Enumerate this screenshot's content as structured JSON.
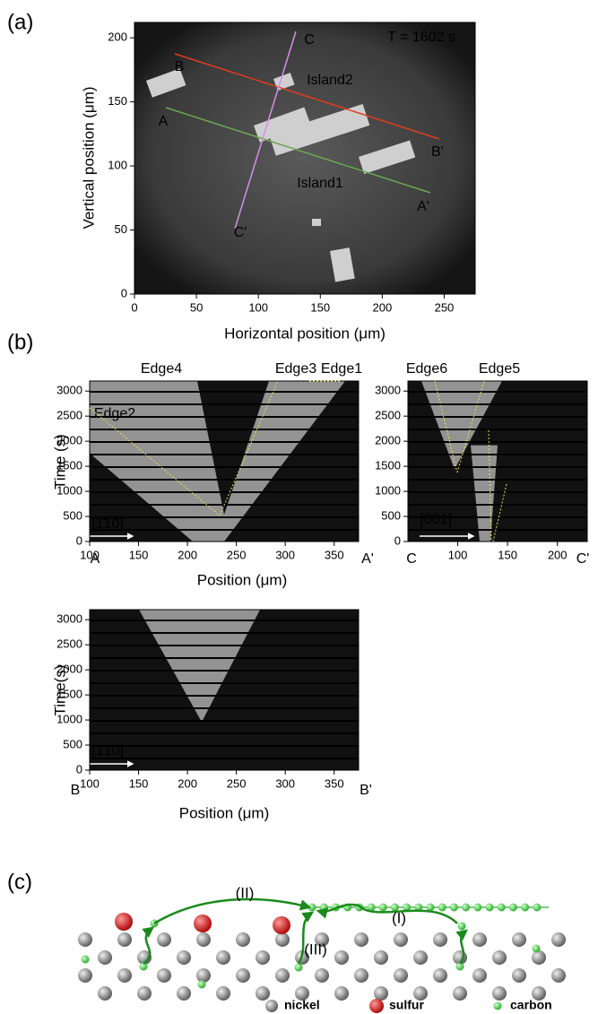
{
  "panel_labels": [
    "(a)",
    "(b)",
    "(c)"
  ],
  "chart_data": [
    {
      "type": "image",
      "xlabel": "Horizontal position (μm)",
      "ylabel": "Vertical position (μm)",
      "xlim": [
        0,
        275
      ],
      "ylim": [
        0,
        212
      ],
      "xticks": [
        0,
        50,
        100,
        150,
        200,
        250
      ],
      "yticks": [
        0,
        50,
        100,
        150,
        200
      ],
      "annotations": [
        {
          "text": "T = 1602 s",
          "color": "#ffffff"
        },
        {
          "text": "Island2",
          "color": "#ffffff"
        },
        {
          "text": "Island1",
          "color": "#ffffff"
        },
        {
          "text": "A",
          "color": "#6aa84f"
        },
        {
          "text": "A'",
          "color": "#6aa84f"
        },
        {
          "text": "B",
          "color": "#e03c1e"
        },
        {
          "text": "B'",
          "color": "#e03c1e"
        },
        {
          "text": "C",
          "color": "#d58ee8"
        },
        {
          "text": "C'",
          "color": "#d58ee8"
        }
      ]
    },
    {
      "type": "kymograph",
      "xlabel": "Position (μm)",
      "ylabel": "Time (s)",
      "xlim": [
        100,
        375
      ],
      "ylim": [
        0,
        3200
      ],
      "xticks": [
        100,
        150,
        200,
        250,
        300,
        350
      ],
      "yticks": [
        0,
        500,
        1000,
        1500,
        2000,
        2500,
        3000
      ],
      "annotations": [
        {
          "text": "Edge4",
          "color": "#000000"
        },
        {
          "text": "Edge3",
          "color": "#000000"
        },
        {
          "text": "Edge1",
          "color": "#000000"
        },
        {
          "text": "Edge2",
          "color": "#ffffff"
        },
        {
          "text": "[1̄10]",
          "color": "#ffffff"
        },
        {
          "text": "A",
          "color": "#6aa84f"
        },
        {
          "text": "A'",
          "color": "#6aa84f"
        }
      ]
    },
    {
      "type": "kymograph",
      "xlim": [
        50,
        230
      ],
      "ylim": [
        0,
        3200
      ],
      "xticks": [
        100,
        150,
        200
      ],
      "yticks": [
        0,
        500,
        1000,
        1500,
        2000,
        2500,
        3000
      ],
      "annotations": [
        {
          "text": "Edge6",
          "color": "#000000"
        },
        {
          "text": "Edge5",
          "color": "#000000"
        },
        {
          "text": "[001]",
          "color": "#ffffff"
        },
        {
          "text": "C",
          "color": "#d58ee8"
        },
        {
          "text": "C'",
          "color": "#d58ee8"
        }
      ]
    },
    {
      "type": "kymograph",
      "xlabel": "Position (μm)",
      "ylabel": "Time(s)",
      "xlim": [
        100,
        375
      ],
      "ylim": [
        0,
        3200
      ],
      "xticks": [
        100,
        150,
        200,
        250,
        300,
        350
      ],
      "yticks": [
        0,
        500,
        1000,
        1500,
        2000,
        2500,
        3000
      ],
      "annotations": [
        {
          "text": "[1̄10]",
          "color": "#ffffff"
        },
        {
          "text": "B",
          "color": "#e03c1e"
        },
        {
          "text": "B'",
          "color": "#e03c1e"
        }
      ]
    }
  ],
  "diagram": {
    "labels": [
      "(II)",
      "(I)",
      "(III)"
    ],
    "legend": [
      "nickel",
      "sulfur",
      "carbon"
    ]
  }
}
